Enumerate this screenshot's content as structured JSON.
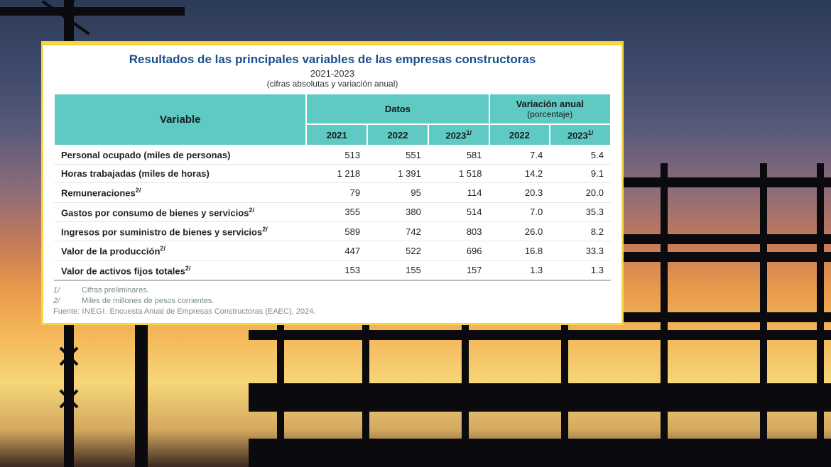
{
  "background": {
    "gradient_stops": [
      "#2b3a55",
      "#3d4a6b",
      "#5a5a7a",
      "#8a6b7a",
      "#c47a5a",
      "#e89a4a",
      "#f4b85a",
      "#f5d678",
      "#d4a860",
      "#3a2820"
    ],
    "silhouette_color": "#0a0a0f"
  },
  "panel": {
    "border_color": "#f5d742",
    "background_color": "#ffffff",
    "title_color": "#1a4e8e",
    "header_bg_color": "#5fc9c4",
    "grid_color": "#e6e6e6",
    "title": "Resultados de las principales variables de las empresas constructoras",
    "subtitle_line1": "2021-2023",
    "subtitle_line2": "(cifras absolutas y variación anual)"
  },
  "table": {
    "group_headers": {
      "variable": "Variable",
      "datos": "Datos",
      "variacion": "Variación anual",
      "variacion_sub": "(porcentaje)"
    },
    "columns": [
      "2021",
      "2022",
      "2023",
      "2022",
      "2023"
    ],
    "col_super": [
      "",
      "",
      "1/",
      "",
      "1/"
    ],
    "rows": [
      {
        "label": "Personal ocupado (miles de personas)",
        "sup": "",
        "vals": [
          "513",
          "551",
          "581",
          "7.4",
          "5.4"
        ]
      },
      {
        "label": "Horas trabajadas (miles de horas)",
        "sup": "",
        "vals": [
          "1 218",
          "1 391",
          "1 518",
          "14.2",
          "9.1"
        ]
      },
      {
        "label": "Remuneraciones",
        "sup": "2/",
        "vals": [
          "79",
          "95",
          "114",
          "20.3",
          "20.0"
        ]
      },
      {
        "label": "Gastos por consumo de bienes y servicios",
        "sup": "2/",
        "vals": [
          "355",
          "380",
          "514",
          "7.0",
          "35.3"
        ]
      },
      {
        "label": "Ingresos por suministro de bienes y servicios",
        "sup": "2/",
        "vals": [
          "589",
          "742",
          "803",
          "26.0",
          "8.2"
        ]
      },
      {
        "label": "Valor de la producción",
        "sup": "2/",
        "vals": [
          "447",
          "522",
          "696",
          "16.8",
          "33.3"
        ]
      },
      {
        "label": "Valor de activos fijos totales",
        "sup": "2/",
        "vals": [
          "153",
          "155",
          "157",
          "1.3",
          "1.3"
        ]
      }
    ]
  },
  "footnotes": {
    "n1_mark": "1/",
    "n1_text": "Cifras preliminares.",
    "n2_mark": "2/",
    "n2_text": "Miles de millones de pesos corrientes.",
    "source_label": "Fuente:",
    "source_org": "INEGI.",
    "source_rest": "Encuesta Anual de Empresas Constructoras (EAEC), 2024."
  }
}
